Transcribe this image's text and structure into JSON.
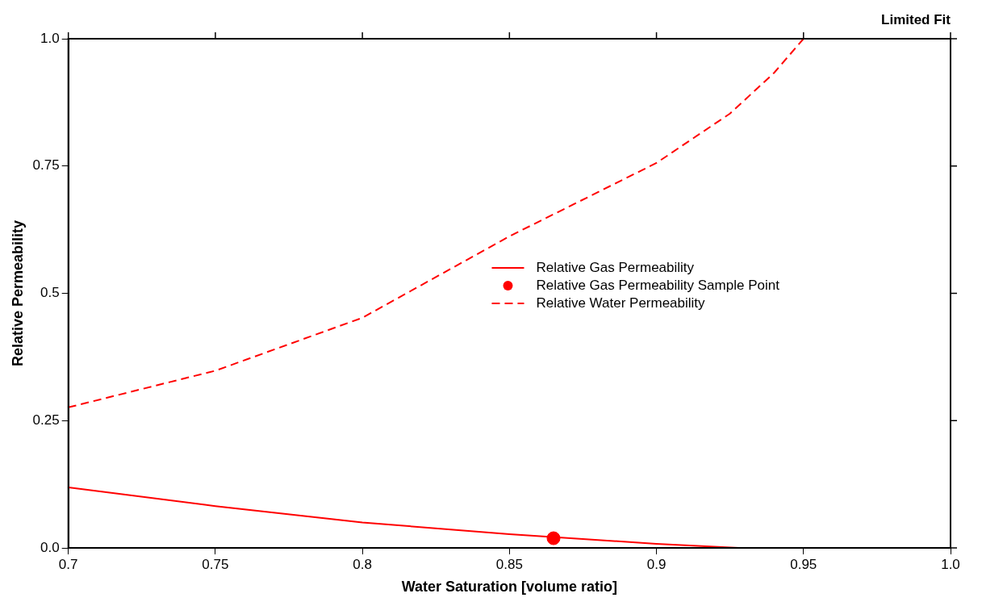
{
  "chart_data": {
    "type": "line",
    "title": "Limited Fit",
    "xlabel": "Water Saturation [volume ratio]",
    "ylabel": "Relative Permeability",
    "xlim": [
      0.7,
      1.0
    ],
    "xticks": [
      0.7,
      0.75,
      0.8,
      0.85,
      0.9,
      0.95,
      {
        "value": 1.0,
        "label": "1.0"
      }
    ],
    "ylim": [
      0,
      1.0
    ],
    "yticks": [
      {
        "value": 0,
        "label": "0.0"
      },
      0.25,
      0.5,
      0.75,
      {
        "value": 1.0,
        "label": "1.0"
      }
    ],
    "grid": false,
    "legend": "right",
    "series": [
      {
        "name": "Relative Gas Permeability",
        "type": "line",
        "color": "#ff0000",
        "line_style": "solid",
        "marker": "none",
        "x": [
          0.7,
          0.75,
          0.8,
          0.85,
          0.9,
          0.928
        ],
        "values": [
          0.119,
          0.082,
          0.05,
          0.027,
          0.008,
          0
        ]
      },
      {
        "name": "Relative Gas Permeability Sample Point",
        "type": "scatter",
        "color": "#ff0000",
        "marker": "circle",
        "x": [
          0.865
        ],
        "values": [
          0.019
        ]
      },
      {
        "name": "Relative Water Permeability",
        "type": "line",
        "color": "#ff0000",
        "line_style": "dashed",
        "marker": "none",
        "x": [
          0.7,
          0.75,
          0.8,
          0.85,
          0.9,
          0.925,
          0.94,
          0.95
        ],
        "values": [
          0.276,
          0.348,
          0.452,
          0.612,
          0.756,
          0.853,
          0.933,
          1.0
        ]
      }
    ]
  }
}
